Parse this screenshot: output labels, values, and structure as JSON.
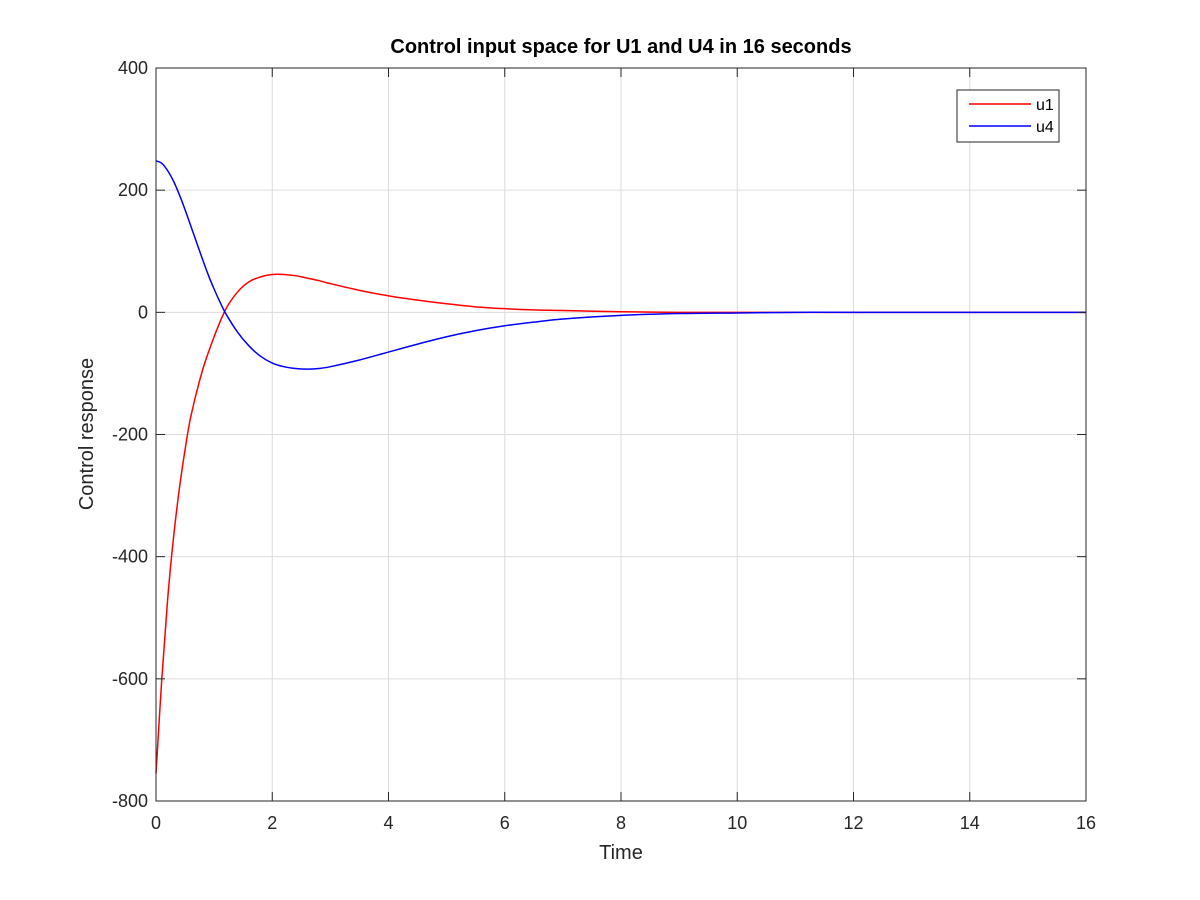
{
  "chart_data": {
    "type": "line",
    "title": "Control input space for U1 and U4 in 16 seconds",
    "xlabel": "Time",
    "ylabel": "Control response",
    "xlim": [
      0,
      16
    ],
    "ylim": [
      -800,
      400
    ],
    "xticks": [
      "0",
      "2",
      "4",
      "6",
      "8",
      "10",
      "12",
      "14",
      "16"
    ],
    "yticks": [
      "-800",
      "-600",
      "-400",
      "-200",
      "0",
      "200",
      "400"
    ],
    "grid": true,
    "legend_position": "top-right",
    "series": [
      {
        "name": "u1",
        "color": "#ff0000",
        "x": [
          0,
          0.1,
          0.2,
          0.3,
          0.4,
          0.5,
          0.6,
          0.8,
          1.0,
          1.2,
          1.4,
          1.6,
          1.8,
          2.0,
          2.2,
          2.4,
          2.6,
          2.8,
          3.0,
          3.5,
          4.0,
          4.5,
          5.0,
          5.5,
          6.0,
          6.5,
          7.0,
          8.0,
          9.0,
          10.0,
          11.0,
          12.0,
          13.0,
          14.0,
          15.0,
          16.0
        ],
        "y": [
          -755,
          -600,
          -470,
          -370,
          -290,
          -225,
          -170,
          -95,
          -40,
          5,
          33,
          50,
          58,
          62,
          62,
          60,
          56,
          52,
          47,
          36,
          27,
          20,
          14,
          9,
          6,
          4,
          3,
          1,
          0,
          0,
          0,
          0,
          0,
          0,
          0,
          0
        ]
      },
      {
        "name": "u4",
        "color": "#0000ff",
        "x": [
          0,
          0.1,
          0.2,
          0.3,
          0.4,
          0.5,
          0.6,
          0.7,
          0.8,
          0.9,
          1.0,
          1.1,
          1.2,
          1.4,
          1.6,
          1.8,
          2.0,
          2.2,
          2.4,
          2.6,
          2.8,
          3.0,
          3.5,
          4.0,
          4.5,
          5.0,
          5.5,
          6.0,
          6.5,
          7.0,
          8.0,
          9.0,
          10.0,
          11.0,
          12.0,
          14.0,
          16.0
        ],
        "y": [
          248,
          244,
          232,
          215,
          193,
          168,
          141,
          114,
          87,
          61,
          38,
          17,
          -2,
          -32,
          -55,
          -72,
          -83,
          -89,
          -92,
          -93,
          -92,
          -89,
          -78,
          -65,
          -52,
          -40,
          -30,
          -22,
          -16,
          -11,
          -5,
          -2,
          -1,
          0,
          0,
          0,
          0
        ]
      }
    ]
  }
}
